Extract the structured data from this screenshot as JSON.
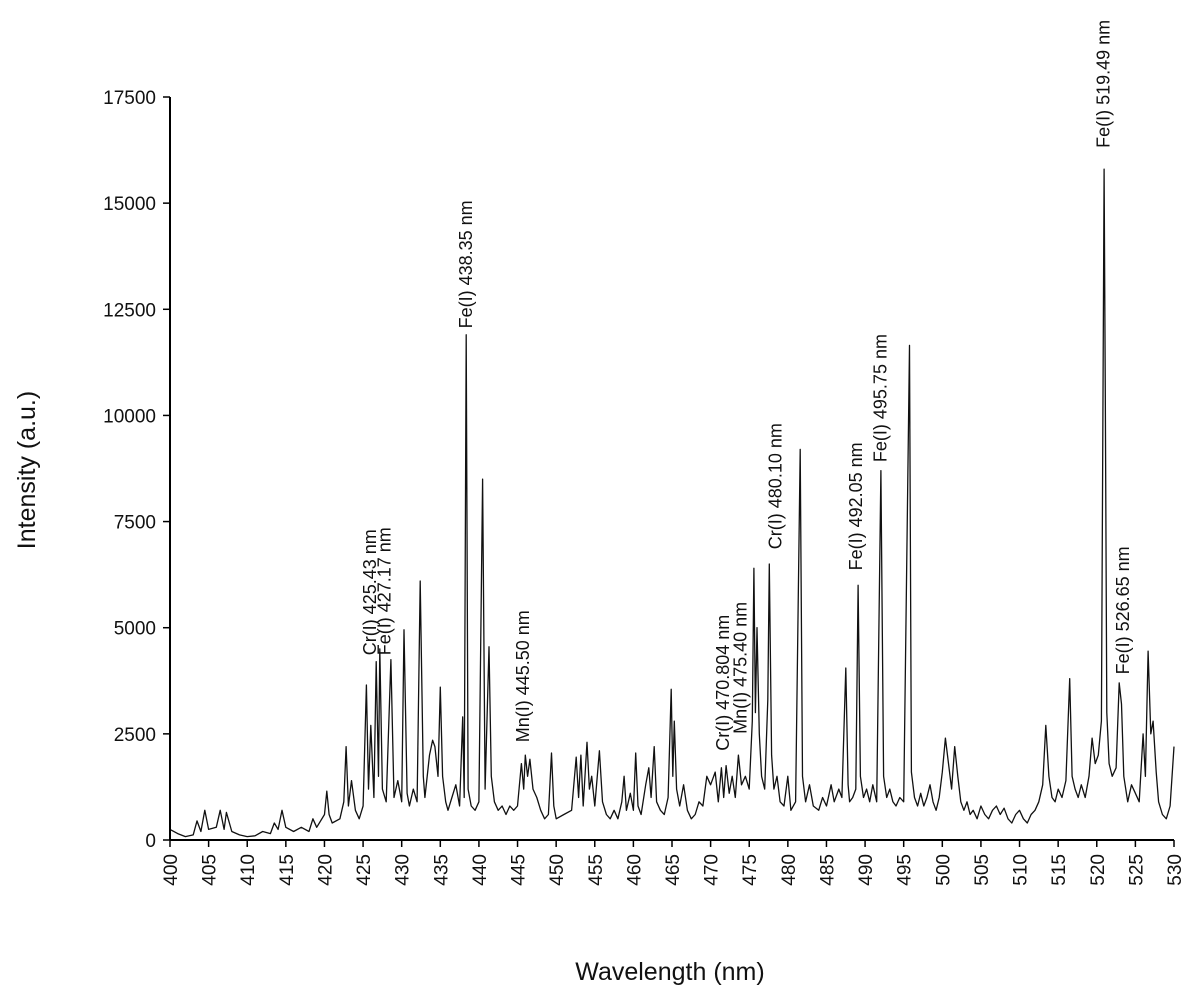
{
  "chart_data": {
    "type": "line",
    "xlabel": "Wavelength (nm)",
    "ylabel": "Intensity (a.u.)",
    "xlim": [
      400,
      530
    ],
    "ylim": [
      0,
      17500
    ],
    "x_ticks": [
      400,
      405,
      410,
      415,
      420,
      425,
      430,
      435,
      440,
      445,
      450,
      455,
      460,
      465,
      470,
      475,
      480,
      485,
      490,
      495,
      500,
      505,
      510,
      515,
      520,
      525,
      530
    ],
    "y_ticks": [
      0,
      2500,
      5000,
      7500,
      10000,
      12500,
      15000,
      17500
    ],
    "series": [
      {
        "points": [
          [
            400,
            250
          ],
          [
            401,
            150
          ],
          [
            402,
            80
          ],
          [
            403,
            120
          ],
          [
            403.5,
            450
          ],
          [
            404,
            200
          ],
          [
            404.5,
            700
          ],
          [
            405,
            250
          ],
          [
            406,
            300
          ],
          [
            406.5,
            700
          ],
          [
            407,
            250
          ],
          [
            407.3,
            650
          ],
          [
            408,
            200
          ],
          [
            409,
            120
          ],
          [
            410,
            80
          ],
          [
            411,
            100
          ],
          [
            412,
            200
          ],
          [
            413,
            150
          ],
          [
            413.5,
            400
          ],
          [
            414,
            250
          ],
          [
            414.5,
            700
          ],
          [
            415,
            300
          ],
          [
            416,
            200
          ],
          [
            417,
            300
          ],
          [
            418,
            200
          ],
          [
            418.5,
            500
          ],
          [
            419,
            300
          ],
          [
            420,
            600
          ],
          [
            420.3,
            1150
          ],
          [
            420.6,
            600
          ],
          [
            421,
            400
          ],
          [
            422,
            500
          ],
          [
            422.5,
            900
          ],
          [
            422.8,
            2200
          ],
          [
            423.1,
            800
          ],
          [
            423.5,
            1400
          ],
          [
            424,
            700
          ],
          [
            424.5,
            500
          ],
          [
            425,
            800
          ],
          [
            425.43,
            3650
          ],
          [
            425.7,
            1200
          ],
          [
            426,
            2700
          ],
          [
            426.4,
            1000
          ],
          [
            426.7,
            4200
          ],
          [
            427,
            1500
          ],
          [
            427.17,
            4500
          ],
          [
            427.5,
            1200
          ],
          [
            428,
            900
          ],
          [
            428.6,
            4250
          ],
          [
            429,
            1000
          ],
          [
            429.5,
            1400
          ],
          [
            430,
            900
          ],
          [
            430.3,
            4950
          ],
          [
            430.7,
            1100
          ],
          [
            431,
            800
          ],
          [
            431.5,
            1200
          ],
          [
            432,
            900
          ],
          [
            432.4,
            6100
          ],
          [
            432.8,
            1500
          ],
          [
            433,
            1000
          ],
          [
            433.6,
            2000
          ],
          [
            434,
            2350
          ],
          [
            434.3,
            2200
          ],
          [
            434.7,
            1500
          ],
          [
            435,
            3600
          ],
          [
            435.3,
            1500
          ],
          [
            435.7,
            900
          ],
          [
            436,
            700
          ],
          [
            436.5,
            1000
          ],
          [
            437,
            1300
          ],
          [
            437.5,
            800
          ],
          [
            437.9,
            2900
          ],
          [
            438.1,
            1000
          ],
          [
            438.35,
            11900
          ],
          [
            438.6,
            1200
          ],
          [
            439,
            800
          ],
          [
            439.5,
            700
          ],
          [
            440,
            900
          ],
          [
            440.48,
            8500
          ],
          [
            440.8,
            1200
          ],
          [
            441.3,
            4550
          ],
          [
            441.6,
            1500
          ],
          [
            442,
            900
          ],
          [
            442.5,
            700
          ],
          [
            443,
            800
          ],
          [
            443.5,
            600
          ],
          [
            444,
            800
          ],
          [
            444.5,
            700
          ],
          [
            445,
            800
          ],
          [
            445.5,
            1800
          ],
          [
            445.8,
            1200
          ],
          [
            446,
            2000
          ],
          [
            446.3,
            1500
          ],
          [
            446.6,
            1900
          ],
          [
            447,
            1200
          ],
          [
            447.5,
            1000
          ],
          [
            448,
            700
          ],
          [
            448.5,
            500
          ],
          [
            449,
            600
          ],
          [
            449.4,
            2050
          ],
          [
            449.7,
            800
          ],
          [
            450,
            500
          ],
          [
            451,
            600
          ],
          [
            452,
            700
          ],
          [
            452.6,
            1950
          ],
          [
            452.9,
            1000
          ],
          [
            453.2,
            2000
          ],
          [
            453.5,
            800
          ],
          [
            454,
            2300
          ],
          [
            454.3,
            1200
          ],
          [
            454.6,
            1500
          ],
          [
            455,
            800
          ],
          [
            455.6,
            2100
          ],
          [
            456,
            900
          ],
          [
            456.5,
            600
          ],
          [
            457,
            500
          ],
          [
            457.5,
            700
          ],
          [
            458,
            500
          ],
          [
            458.5,
            900
          ],
          [
            458.8,
            1500
          ],
          [
            459.1,
            700
          ],
          [
            459.6,
            1100
          ],
          [
            460,
            700
          ],
          [
            460.3,
            2050
          ],
          [
            460.6,
            800
          ],
          [
            461,
            600
          ],
          [
            461.6,
            1300
          ],
          [
            462,
            1700
          ],
          [
            462.3,
            1000
          ],
          [
            462.7,
            2200
          ],
          [
            463,
            900
          ],
          [
            463.5,
            700
          ],
          [
            464,
            600
          ],
          [
            464.5,
            1000
          ],
          [
            464.9,
            3550
          ],
          [
            465.1,
            1500
          ],
          [
            465.3,
            2800
          ],
          [
            465.6,
            1200
          ],
          [
            466,
            800
          ],
          [
            466.5,
            1300
          ],
          [
            467,
            700
          ],
          [
            467.5,
            500
          ],
          [
            468,
            600
          ],
          [
            468.5,
            900
          ],
          [
            469,
            800
          ],
          [
            469.5,
            1500
          ],
          [
            470,
            1300
          ],
          [
            470.6,
            1600
          ],
          [
            471,
            900
          ],
          [
            471.4,
            1700
          ],
          [
            471.7,
            1000
          ],
          [
            472,
            1750
          ],
          [
            472.4,
            1100
          ],
          [
            472.8,
            1500
          ],
          [
            473.2,
            1000
          ],
          [
            473.6,
            2000
          ],
          [
            474,
            1300
          ],
          [
            474.5,
            1500
          ],
          [
            475,
            1200
          ],
          [
            475.4,
            2800
          ],
          [
            475.6,
            6400
          ],
          [
            475.8,
            3000
          ],
          [
            476,
            5000
          ],
          [
            476.3,
            2500
          ],
          [
            476.6,
            1500
          ],
          [
            477,
            1200
          ],
          [
            477.4,
            3300
          ],
          [
            477.6,
            6500
          ],
          [
            477.9,
            2000
          ],
          [
            478.2,
            1200
          ],
          [
            478.6,
            1500
          ],
          [
            479,
            900
          ],
          [
            479.5,
            800
          ],
          [
            480,
            1500
          ],
          [
            480.4,
            700
          ],
          [
            481,
            900
          ],
          [
            481.6,
            9200
          ],
          [
            481.9,
            1500
          ],
          [
            482.3,
            900
          ],
          [
            482.8,
            1300
          ],
          [
            483.3,
            800
          ],
          [
            484,
            700
          ],
          [
            484.5,
            1000
          ],
          [
            485,
            800
          ],
          [
            485.6,
            1300
          ],
          [
            486,
            900
          ],
          [
            486.6,
            1200
          ],
          [
            487,
            1000
          ],
          [
            487.5,
            4050
          ],
          [
            487.8,
            1300
          ],
          [
            488,
            900
          ],
          [
            488.4,
            1000
          ],
          [
            488.8,
            1200
          ],
          [
            489.1,
            6000
          ],
          [
            489.4,
            1500
          ],
          [
            489.8,
            1000
          ],
          [
            490.2,
            1200
          ],
          [
            490.6,
            900
          ],
          [
            491,
            1300
          ],
          [
            491.5,
            900
          ],
          [
            492.05,
            8700
          ],
          [
            492.4,
            1500
          ],
          [
            492.8,
            1000
          ],
          [
            493.2,
            1200
          ],
          [
            493.6,
            900
          ],
          [
            494,
            800
          ],
          [
            494.5,
            1000
          ],
          [
            495,
            900
          ],
          [
            495.75,
            11650
          ],
          [
            496,
            1600
          ],
          [
            496.4,
            1000
          ],
          [
            496.8,
            800
          ],
          [
            497.2,
            1100
          ],
          [
            497.6,
            800
          ],
          [
            498,
            1000
          ],
          [
            498.4,
            1300
          ],
          [
            498.8,
            900
          ],
          [
            499.2,
            700
          ],
          [
            499.6,
            1000
          ],
          [
            500,
            1600
          ],
          [
            500.4,
            2400
          ],
          [
            500.8,
            1800
          ],
          [
            501.2,
            1200
          ],
          [
            501.6,
            2200
          ],
          [
            502,
            1500
          ],
          [
            502.4,
            900
          ],
          [
            502.8,
            700
          ],
          [
            503.2,
            900
          ],
          [
            503.6,
            600
          ],
          [
            504,
            700
          ],
          [
            504.5,
            500
          ],
          [
            505,
            800
          ],
          [
            505.5,
            600
          ],
          [
            506,
            500
          ],
          [
            506.5,
            700
          ],
          [
            507,
            800
          ],
          [
            507.5,
            600
          ],
          [
            508,
            750
          ],
          [
            508.5,
            500
          ],
          [
            509,
            400
          ],
          [
            509.5,
            600
          ],
          [
            510,
            700
          ],
          [
            510.5,
            500
          ],
          [
            511,
            400
          ],
          [
            511.5,
            600
          ],
          [
            512,
            700
          ],
          [
            512.5,
            900
          ],
          [
            513,
            1300
          ],
          [
            513.4,
            2700
          ],
          [
            513.8,
            1500
          ],
          [
            514.2,
            1000
          ],
          [
            514.6,
            900
          ],
          [
            515,
            1200
          ],
          [
            515.5,
            1000
          ],
          [
            516,
            1400
          ],
          [
            516.5,
            3800
          ],
          [
            516.8,
            1500
          ],
          [
            517.2,
            1200
          ],
          [
            517.6,
            1000
          ],
          [
            518,
            1300
          ],
          [
            518.5,
            1000
          ],
          [
            519,
            1500
          ],
          [
            519.4,
            2400
          ],
          [
            519.8,
            1800
          ],
          [
            520.2,
            2000
          ],
          [
            520.6,
            2800
          ],
          [
            520.8,
            10000
          ],
          [
            520.95,
            15800
          ],
          [
            521.1,
            10500
          ],
          [
            521.3,
            3000
          ],
          [
            521.6,
            1800
          ],
          [
            522,
            1500
          ],
          [
            522.5,
            1700
          ],
          [
            522.9,
            3700
          ],
          [
            523.2,
            3200
          ],
          [
            523.5,
            1500
          ],
          [
            524,
            900
          ],
          [
            524.5,
            1300
          ],
          [
            525,
            1100
          ],
          [
            525.5,
            900
          ],
          [
            526,
            2500
          ],
          [
            526.3,
            1500
          ],
          [
            526.65,
            4450
          ],
          [
            527,
            2500
          ],
          [
            527.3,
            2800
          ],
          [
            527.7,
            1600
          ],
          [
            528,
            900
          ],
          [
            528.5,
            600
          ],
          [
            529,
            500
          ],
          [
            529.5,
            800
          ],
          [
            530,
            2200
          ]
        ]
      }
    ],
    "annotations": [
      {
        "text": "Cr(I) 425.43 nm",
        "x": 425.9,
        "y": 4350
      },
      {
        "text": "Fe(I) 427.17 nm",
        "x": 427.8,
        "y": 4350
      },
      {
        "text": "Fe(I) 438.35 nm",
        "x": 438.3,
        "y": 12050
      },
      {
        "text": "Mn(I) 445.50 nm",
        "x": 445.7,
        "y": 2300
      },
      {
        "text": "Cr(I) 470.804 nm",
        "x": 471.6,
        "y": 2100
      },
      {
        "text": "Mn(I) 475.40 nm",
        "x": 473.9,
        "y": 2500
      },
      {
        "text": "Cr(I) 480.10 nm",
        "x": 478.4,
        "y": 6850
      },
      {
        "text": "Fe(I) 492.05 nm",
        "x": 488.8,
        "y": 6350
      },
      {
        "text": "Fe(I) 495.75 nm",
        "x": 492.0,
        "y": 8900
      },
      {
        "text": "Fe(I) 519.49 nm",
        "x": 520.9,
        "y": 16300
      },
      {
        "text": "Fe(I) 526.65 nm",
        "x": 523.4,
        "y": 3900
      }
    ],
    "grid": false,
    "legend": "none"
  }
}
